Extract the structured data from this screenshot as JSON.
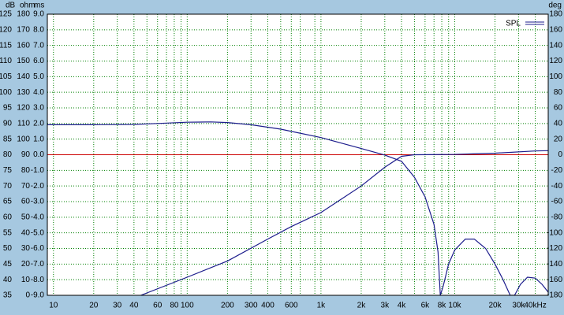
{
  "chart_data": {
    "type": "line",
    "axis_titles": [
      "dB",
      "ohm",
      "ms"
    ],
    "y2_title": "deg",
    "xscale": "log",
    "xlim": [
      9,
      50000
    ],
    "xticks": [
      10,
      20,
      30,
      40,
      60,
      80,
      100,
      200,
      300,
      400,
      600,
      {
        "value": 1000,
        "label": "1k"
      },
      {
        "value": 2000,
        "label": "2k"
      },
      {
        "value": 3000,
        "label": "3k"
      },
      {
        "value": 4000,
        "label": "4k"
      },
      {
        "value": 6000,
        "label": "6k"
      },
      {
        "value": 8000,
        "label": "8k"
      },
      {
        "value": 10000,
        "label": "10k"
      },
      {
        "value": 20000,
        "label": "20k"
      },
      {
        "value": 30000,
        "label": "30k"
      },
      {
        "value": 40000,
        "label": "40kHz"
      }
    ],
    "xgrid_minor": [
      50,
      70,
      90,
      500,
      700,
      900,
      5000,
      7000,
      9000
    ],
    "ylim": [
      35,
      125
    ],
    "yticks": [
      35,
      40,
      45,
      50,
      55,
      60,
      65,
      70,
      75,
      80,
      85,
      90,
      95,
      100,
      105,
      110,
      115,
      120,
      125
    ],
    "ohm_lim": [
      0,
      180
    ],
    "ohm_ticks": [
      0,
      10,
      20,
      30,
      40,
      50,
      60,
      70,
      80,
      90,
      100,
      110,
      120,
      130,
      140,
      150,
      160,
      170,
      180
    ],
    "ms_lim": [
      -9,
      9
    ],
    "ms_ticks": [
      {
        "value": -9,
        "label": "-9.0"
      },
      {
        "value": -8,
        "label": "-8.0"
      },
      {
        "value": -7,
        "label": "-7.0"
      },
      {
        "value": -6,
        "label": "-6.0"
      },
      {
        "value": -5,
        "label": "-5.0"
      },
      {
        "value": -4,
        "label": "-4.0"
      },
      {
        "value": -3,
        "label": "-3.0"
      },
      {
        "value": -2,
        "label": "-2.0"
      },
      {
        "value": -1,
        "label": "-1.0"
      },
      {
        "value": 0,
        "label": "0.0"
      },
      {
        "value": 1,
        "label": "1.0"
      },
      {
        "value": 2,
        "label": "2.0"
      },
      {
        "value": 3,
        "label": "3.0"
      },
      {
        "value": 4,
        "label": "4.0"
      },
      {
        "value": 5,
        "label": "5.0"
      },
      {
        "value": 6,
        "label": "6.0"
      },
      {
        "value": 7,
        "label": "7.0"
      },
      {
        "value": 8,
        "label": "8.0"
      },
      {
        "value": 9,
        "label": "9.0"
      }
    ],
    "y2lim": [
      -180,
      180
    ],
    "y2ticks": [
      -180,
      -160,
      -140,
      -120,
      -100,
      -80,
      -60,
      -40,
      -20,
      0,
      20,
      40,
      60,
      80,
      100,
      120,
      140,
      160,
      180
    ],
    "grid": true,
    "legend": "top-right",
    "reference_line": {
      "value": 0,
      "axis": "y2",
      "color": "#cc0000"
    },
    "series": [
      {
        "name": "SPL",
        "color": "#1c1c8c",
        "x": [
          9,
          20,
          40,
          60,
          100,
          150,
          200,
          300,
          500,
          1000,
          2000,
          3000,
          4000,
          5000,
          6000,
          7000,
          7500,
          7800,
          8200,
          9000,
          10000,
          12000,
          14000,
          17000,
          20000,
          23000,
          26000,
          28000,
          31000,
          35000,
          40000,
          45000,
          50000
        ],
        "values": [
          89.6,
          89.6,
          89.7,
          90,
          90.4,
          90.5,
          90.3,
          89.6,
          88.2,
          85.5,
          82,
          79.9,
          77.9,
          72.8,
          66.5,
          57.7,
          48.9,
          35,
          38,
          45,
          49.5,
          53,
          53,
          50,
          45,
          40,
          35,
          35,
          38.5,
          40.8,
          40.5,
          38.5,
          36
        ]
      },
      {
        "color": "#1c1c8c",
        "x": [
          45,
          100,
          200,
          400,
          600,
          1000,
          2000,
          3000,
          4000,
          5000,
          10000,
          20000,
          40000,
          50000
        ],
        "values": [
          35,
          40.8,
          46,
          53,
          57,
          61.5,
          70,
          76,
          79.5,
          80,
          80.1,
          80.5,
          81.2,
          81.3
        ]
      }
    ]
  }
}
